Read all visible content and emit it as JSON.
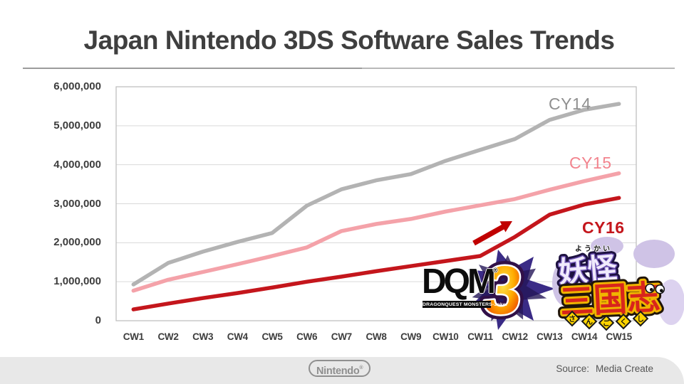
{
  "header": {
    "title": "Japan Nintendo 3DS Software Sales Trends"
  },
  "chart_data": {
    "type": "line",
    "title": "Japan Nintendo 3DS Software Sales Trends",
    "xlabel": "",
    "ylabel": "",
    "ylim": [
      0,
      6000000
    ],
    "grid": true,
    "legend_position": "labels at line ends (right side)",
    "categories": [
      "CW1",
      "CW2",
      "CW3",
      "CW4",
      "CW5",
      "CW6",
      "CW7",
      "CW8",
      "CW9",
      "CW10",
      "CW11",
      "CW12",
      "CW13",
      "CW14",
      "CW15"
    ],
    "ytick_labels": [
      "6,000,000",
      "5,000,000",
      "4,000,000",
      "3,000,000",
      "2,000,000",
      "1,000,000",
      "0"
    ],
    "series": [
      {
        "name": "CY14",
        "color": "#b3b3b3",
        "label_color": "#8f8f8f",
        "values": [
          930000,
          1480000,
          1770000,
          2020000,
          2250000,
          2950000,
          3370000,
          3600000,
          3760000,
          4100000,
          4380000,
          4660000,
          5150000,
          5410000,
          5560000
        ]
      },
      {
        "name": "CY15",
        "color": "#f4a2a9",
        "label_color": "#f2838d",
        "values": [
          770000,
          1050000,
          1250000,
          1450000,
          1660000,
          1880000,
          2300000,
          2480000,
          2610000,
          2800000,
          2960000,
          3120000,
          3360000,
          3580000,
          3780000
        ]
      },
      {
        "name": "CY16",
        "color": "#c4161c",
        "label_color": "#c4161c",
        "values": [
          290000,
          440000,
          580000,
          710000,
          850000,
          1000000,
          1130000,
          1270000,
          1400000,
          1530000,
          1660000,
          2150000,
          2720000,
          2980000,
          3150000
        ]
      }
    ],
    "annotation": {
      "type": "arrow",
      "color": "#c00000",
      "note": "upturn of CY16 cumulative sales around CW11-CW12"
    }
  },
  "logos": {
    "dqm": {
      "acronym": "DQM",
      "reg": "®",
      "number": "3",
      "subtitle": "DRAGONQUEST MONSTERS-Joker"
    },
    "yokai": {
      "furigana_top": "ようかい",
      "title_top": "妖怪",
      "title_main": "三国志",
      "furigana_bottom": [
        "さ",
        "ん",
        "ご",
        "く",
        "し"
      ]
    }
  },
  "footer": {
    "nintendo": "Nintendo",
    "nintendo_reg": "®",
    "source_label": "Source:",
    "source_value": "Media Create"
  }
}
